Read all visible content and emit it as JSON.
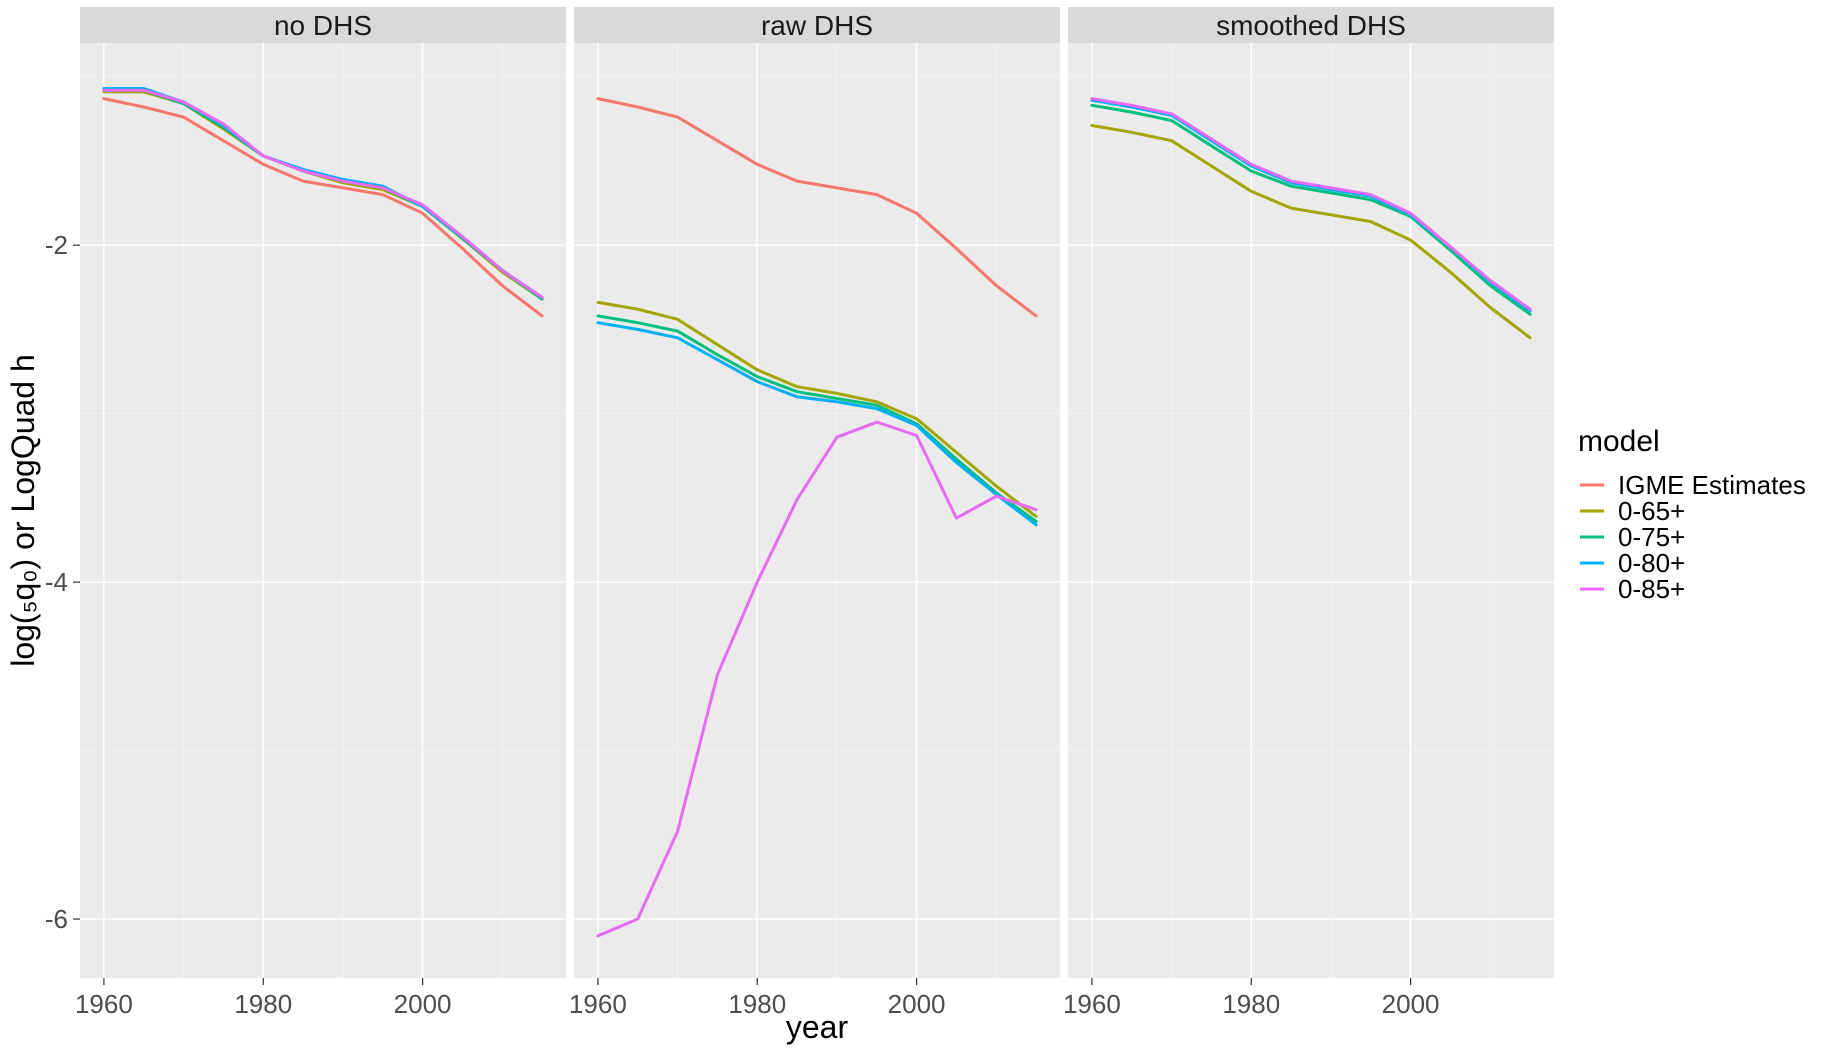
{
  "chart_data": {
    "type": "line",
    "facets": [
      {
        "title": "no DHS",
        "series": [
          {
            "name": "IGME Estimates",
            "x": [
              1960,
              1965,
              1970,
              1975,
              1980,
              1985,
              1990,
              1995,
              2000,
              2005,
              2010,
              2015
            ],
            "y": [
              -1.13,
              -1.18,
              -1.24,
              -1.38,
              -1.52,
              -1.62,
              -1.66,
              -1.7,
              -1.81,
              -2.02,
              -2.24,
              -2.42
            ]
          },
          {
            "name": "0-65+",
            "x": [
              1960,
              1965,
              1970,
              1975,
              1980,
              1985,
              1990,
              1995,
              2000,
              2005,
              2010,
              2015
            ],
            "y": [
              -1.09,
              -1.09,
              -1.16,
              -1.31,
              -1.47,
              -1.56,
              -1.63,
              -1.67,
              -1.77,
              -1.96,
              -2.16,
              -2.32
            ]
          },
          {
            "name": "0-75+",
            "x": [
              1960,
              1965,
              1970,
              1975,
              1980,
              1985,
              1990,
              1995,
              2000,
              2005,
              2010,
              2015
            ],
            "y": [
              -1.08,
              -1.08,
              -1.16,
              -1.3,
              -1.47,
              -1.56,
              -1.62,
              -1.66,
              -1.77,
              -1.96,
              -2.15,
              -2.32
            ]
          },
          {
            "name": "0-80+",
            "x": [
              1960,
              1965,
              1970,
              1975,
              1980,
              1985,
              1990,
              1995,
              2000,
              2005,
              2010,
              2015
            ],
            "y": [
              -1.07,
              -1.07,
              -1.15,
              -1.29,
              -1.47,
              -1.55,
              -1.61,
              -1.65,
              -1.77,
              -1.95,
              -2.15,
              -2.31
            ]
          },
          {
            "name": "0-85+",
            "x": [
              1960,
              1965,
              1970,
              1975,
              1980,
              1985,
              1990,
              1995,
              2000,
              2005,
              2010,
              2015
            ],
            "y": [
              -1.08,
              -1.08,
              -1.15,
              -1.28,
              -1.47,
              -1.56,
              -1.62,
              -1.66,
              -1.76,
              -1.95,
              -2.15,
              -2.31
            ]
          }
        ]
      },
      {
        "title": "raw DHS",
        "series": [
          {
            "name": "IGME Estimates",
            "x": [
              1960,
              1965,
              1970,
              1975,
              1980,
              1985,
              1990,
              1995,
              2000,
              2005,
              2010,
              2015
            ],
            "y": [
              -1.13,
              -1.18,
              -1.24,
              -1.38,
              -1.52,
              -1.62,
              -1.66,
              -1.7,
              -1.81,
              -2.02,
              -2.24,
              -2.42
            ]
          },
          {
            "name": "0-65+",
            "x": [
              1960,
              1965,
              1970,
              1975,
              1980,
              1985,
              1990,
              1995,
              2000,
              2005,
              2010,
              2015
            ],
            "y": [
              -2.34,
              -2.38,
              -2.44,
              -2.59,
              -2.74,
              -2.84,
              -2.88,
              -2.93,
              -3.03,
              -3.23,
              -3.43,
              -3.61
            ]
          },
          {
            "name": "0-75+",
            "x": [
              1960,
              1965,
              1970,
              1975,
              1980,
              1985,
              1990,
              1995,
              2000,
              2005,
              2010,
              2015
            ],
            "y": [
              -2.42,
              -2.46,
              -2.51,
              -2.65,
              -2.78,
              -2.87,
              -2.91,
              -2.95,
              -3.06,
              -3.27,
              -3.47,
              -3.64
            ]
          },
          {
            "name": "0-80+",
            "x": [
              1960,
              1965,
              1970,
              1975,
              1980,
              1985,
              1990,
              1995,
              2000,
              2005,
              2010,
              2015
            ],
            "y": [
              -2.46,
              -2.5,
              -2.55,
              -2.68,
              -2.81,
              -2.9,
              -2.93,
              -2.97,
              -3.07,
              -3.29,
              -3.48,
              -3.66
            ]
          },
          {
            "name": "0-85+",
            "x": [
              1960,
              1965,
              1970,
              1975,
              1980,
              1985,
              1990,
              1995,
              2000,
              2005,
              2010,
              2015
            ],
            "y": [
              -6.1,
              -6.0,
              -5.48,
              -4.55,
              -4.0,
              -3.51,
              -3.14,
              -3.05,
              -3.13,
              -3.62,
              -3.49,
              -3.57
            ]
          }
        ]
      },
      {
        "title": "smoothed DHS",
        "series": [
          {
            "name": "0-65+",
            "x": [
              1960,
              1965,
              1970,
              1975,
              1980,
              1985,
              1990,
              1995,
              2000,
              2005,
              2010,
              2015
            ],
            "y": [
              -1.29,
              -1.33,
              -1.38,
              -1.53,
              -1.68,
              -1.78,
              -1.82,
              -1.86,
              -1.97,
              -2.16,
              -2.37,
              -2.55
            ]
          },
          {
            "name": "0-75+",
            "x": [
              1960,
              1965,
              1970,
              1975,
              1980,
              1985,
              1990,
              1995,
              2000,
              2005,
              2010,
              2015
            ],
            "y": [
              -1.17,
              -1.21,
              -1.26,
              -1.41,
              -1.56,
              -1.65,
              -1.69,
              -1.73,
              -1.83,
              -2.03,
              -2.24,
              -2.41
            ]
          },
          {
            "name": "0-80+",
            "x": [
              1960,
              1965,
              1970,
              1975,
              1980,
              1985,
              1990,
              1995,
              2000,
              2005,
              2010,
              2015
            ],
            "y": [
              -1.14,
              -1.18,
              -1.23,
              -1.38,
              -1.53,
              -1.63,
              -1.67,
              -1.71,
              -1.82,
              -2.01,
              -2.22,
              -2.39
            ]
          },
          {
            "name": "0-85+",
            "x": [
              1960,
              1965,
              1970,
              1975,
              1980,
              1985,
              1990,
              1995,
              2000,
              2005,
              2010,
              2015
            ],
            "y": [
              -1.13,
              -1.17,
              -1.22,
              -1.37,
              -1.52,
              -1.62,
              -1.66,
              -1.7,
              -1.81,
              -2.01,
              -2.21,
              -2.38
            ]
          }
        ]
      }
    ],
    "xlabel": "year",
    "ylabel": "log(₅q₀) or LogQuad h",
    "xlim": [
      1957,
      2018
    ],
    "ylim": [
      -6.35,
      -0.8
    ],
    "xticks": [
      1960,
      1980,
      2000
    ],
    "yticks": [
      -2,
      -4,
      -6
    ],
    "grid": true,
    "legend": {
      "title": "model",
      "position": "right",
      "entries": [
        {
          "name": "IGME Estimates",
          "color": "#F8766D"
        },
        {
          "name": "0-65+",
          "color": "#A3A500"
        },
        {
          "name": "0-75+",
          "color": "#00BF7D"
        },
        {
          "name": "0-80+",
          "color": "#00B0F6"
        },
        {
          "name": "0-85+",
          "color": "#E76BF3"
        }
      ]
    }
  }
}
